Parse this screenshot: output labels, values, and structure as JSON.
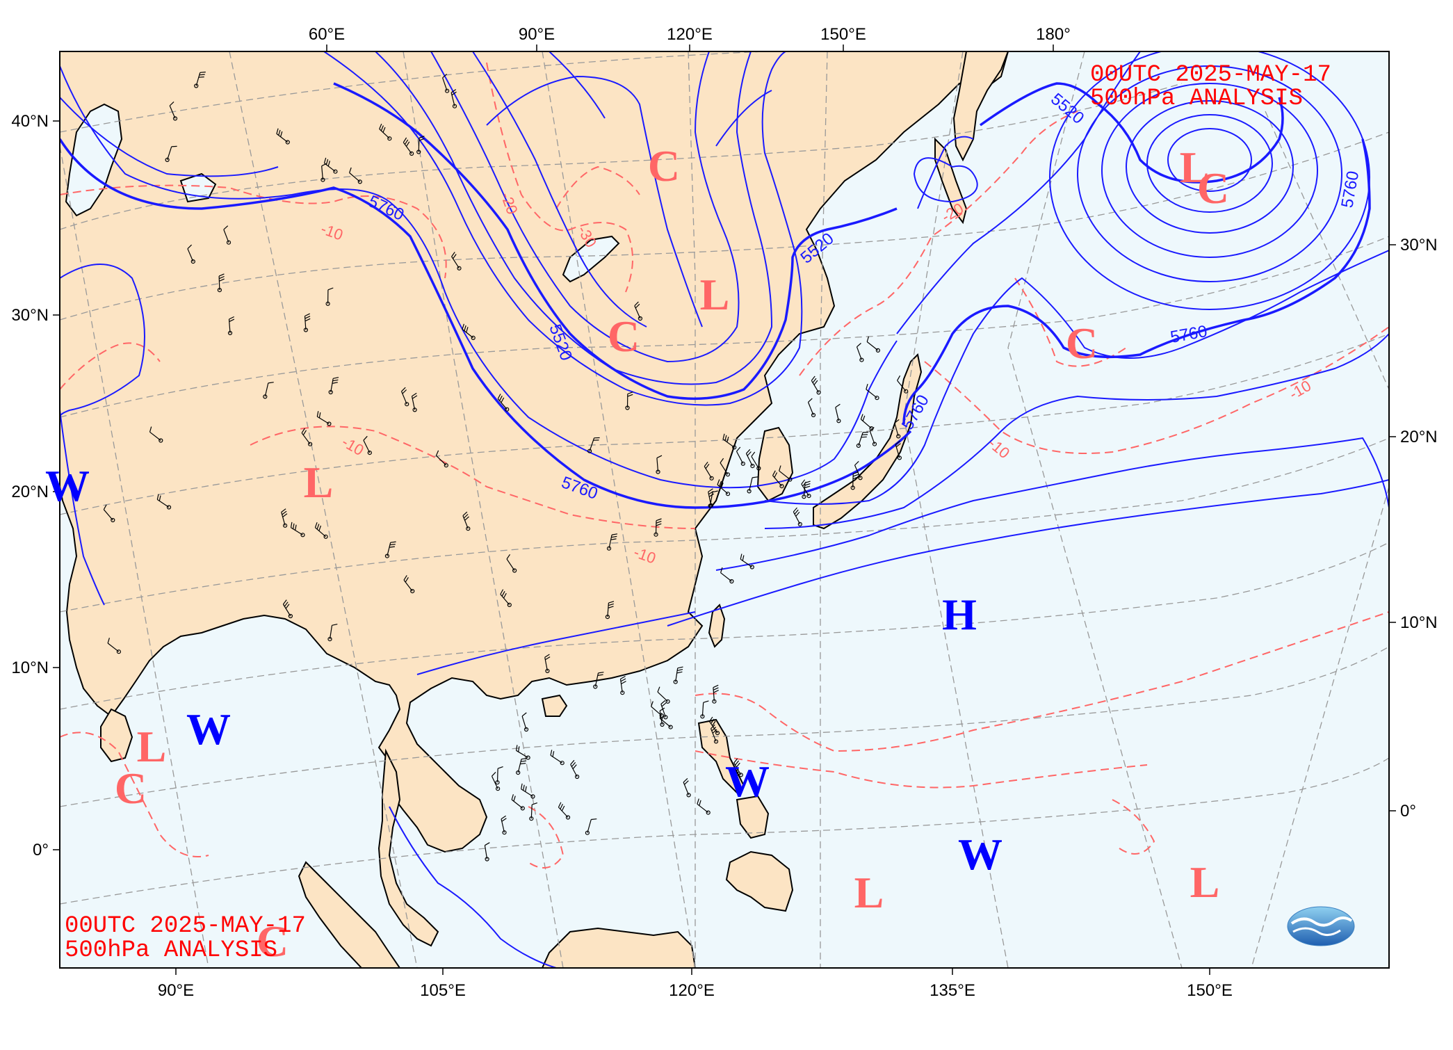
{
  "titles": {
    "top_line1": "00UTC  2025-MAY-17",
    "top_line2": "500hPa ANALYSIS",
    "bottom_line1": "00UTC  2025-MAY-17",
    "bottom_line2": "500hPa ANALYSIS"
  },
  "axes": {
    "top_lon": [
      "60°E",
      "90°E",
      "120°E",
      "150°E",
      "180°"
    ],
    "bottom_lon": [
      "90°E",
      "105°E",
      "120°E",
      "135°E",
      "150°E"
    ],
    "left_lat": [
      "40°N",
      "30°N",
      "20°N",
      "10°N",
      "0°"
    ],
    "right_lat": [
      "30°N",
      "20°N",
      "10°N",
      "0°"
    ]
  },
  "contours": {
    "height": [
      "5760",
      "5520",
      "5520",
      "5760",
      "5520",
      "5760",
      "5760",
      "5760"
    ],
    "temperature": [
      "-10",
      "-20",
      "-30",
      "-10",
      "-20",
      "-10",
      "-10",
      "-10"
    ]
  },
  "systems": [
    {
      "letter": "C",
      "kind": "cold"
    },
    {
      "letter": "L",
      "kind": "low"
    },
    {
      "letter": "C",
      "kind": "cold"
    },
    {
      "letter": "L",
      "kind": "low"
    },
    {
      "letter": "C",
      "kind": "cold"
    },
    {
      "letter": "L",
      "kind": "low"
    },
    {
      "letter": "C",
      "kind": "cold"
    },
    {
      "letter": "H",
      "kind": "high"
    },
    {
      "letter": "W",
      "kind": "warm"
    },
    {
      "letter": "W",
      "kind": "warm"
    },
    {
      "letter": "W",
      "kind": "warm"
    },
    {
      "letter": "L",
      "kind": "low"
    },
    {
      "letter": "C",
      "kind": "cold"
    },
    {
      "letter": "W",
      "kind": "warm"
    },
    {
      "letter": "L",
      "kind": "low"
    },
    {
      "letter": "L",
      "kind": "low"
    },
    {
      "letter": "C",
      "kind": "cold"
    }
  ],
  "colors": {
    "land": "#fce4c4",
    "sea": "#eef8fc",
    "height_contour": "#1a1aff",
    "temperature_contour": "#ff6666",
    "low_cold_letters": "#ff6666",
    "high_warm_letters": "#0000ff",
    "title": "#ff0000",
    "grid": "#999999"
  },
  "logo": {
    "icon": "cwa-logo-icon"
  }
}
